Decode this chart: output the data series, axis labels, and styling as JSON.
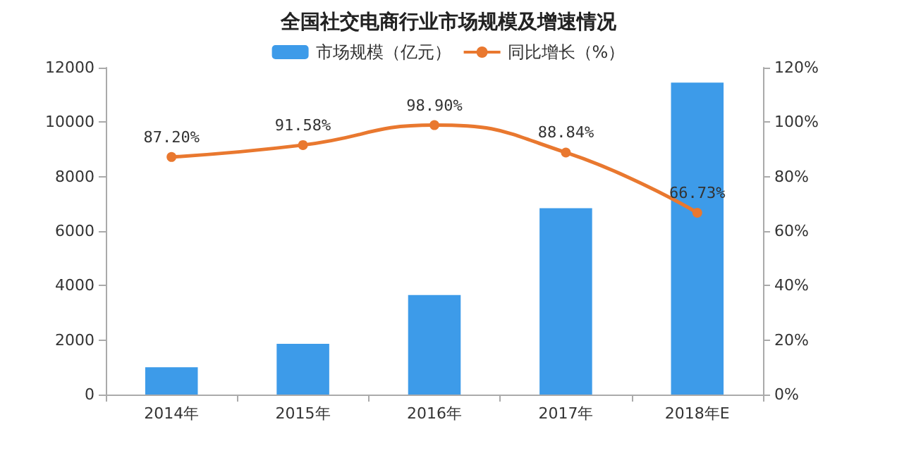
{
  "chart_data": {
    "type": "bar",
    "title": "全国社交电商行业市场规模及增速情况",
    "categories": [
      "2014年",
      "2015年",
      "2016年",
      "2017年",
      "2018年E"
    ],
    "series": [
      {
        "name": "市场规模（亿元）",
        "color": "#3d9be9",
        "values": [
          1000,
          1860,
          3650,
          6840,
          11450
        ]
      },
      {
        "name": "同比增长（%）",
        "type": "line",
        "axis": "y2",
        "color": "#e9782f",
        "values": [
          87.2,
          91.58,
          98.9,
          88.84,
          66.73
        ],
        "value_labels": [
          "87.20%",
          "91.58%",
          "98.90%",
          "88.84%",
          "66.73%"
        ],
        "marker": "circle"
      }
    ],
    "ylim": [
      0,
      12000
    ],
    "yticks": [
      0,
      2000,
      4000,
      6000,
      8000,
      10000,
      12000
    ],
    "y2lim": [
      0,
      120
    ],
    "y2ticks": [
      {
        "value": 0,
        "label": "0%"
      },
      {
        "value": 20,
        "label": "20%"
      },
      {
        "value": 40,
        "label": "40%"
      },
      {
        "value": 60,
        "label": "60%"
      },
      {
        "value": 80,
        "label": "80%"
      },
      {
        "value": 100,
        "label": "100%"
      },
      {
        "value": 120,
        "label": "120%"
      }
    ],
    "grid": false,
    "legend": "top"
  }
}
